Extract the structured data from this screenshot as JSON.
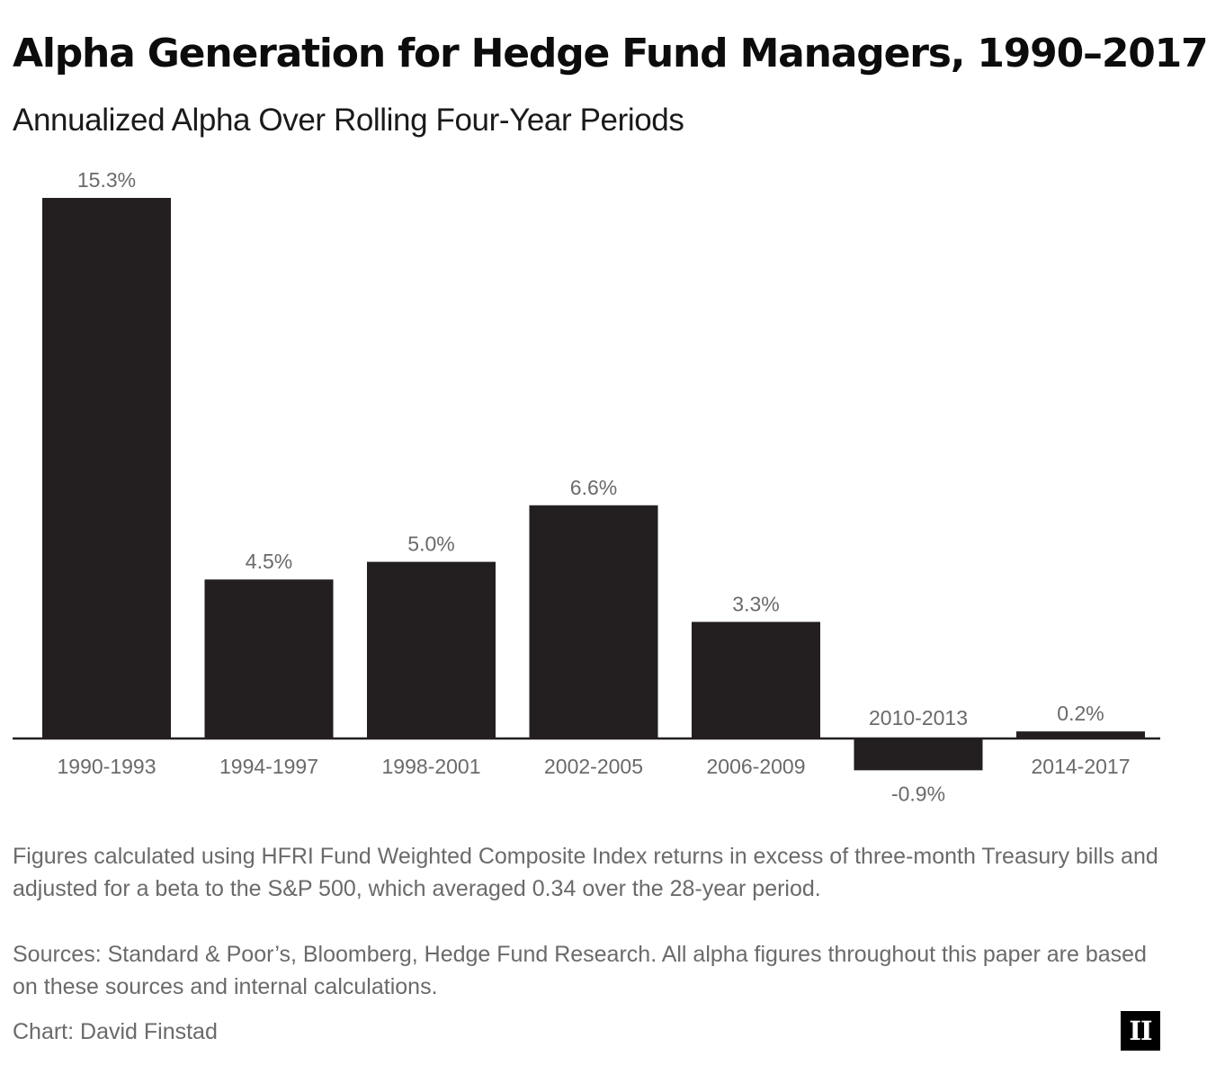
{
  "title": "Alpha Generation for Hedge Fund Managers, 1990–2017",
  "subtitle": "Annualized Alpha Over Rolling Four-Year Periods",
  "chart_data": {
    "type": "bar",
    "categories": [
      "1990-1993",
      "1994-1997",
      "1998-2001",
      "2002-2005",
      "2006-2009",
      "2010-2013",
      "2014-2017"
    ],
    "values": [
      15.3,
      4.5,
      5.0,
      6.6,
      3.3,
      -0.9,
      0.2
    ],
    "value_labels": [
      "15.3%",
      "4.5%",
      "5.0%",
      "6.6%",
      "3.3%",
      "-0.9%",
      "0.2%"
    ],
    "ylim": [
      -1.5,
      16
    ],
    "grid": false,
    "colors": {
      "bar": "#231f20",
      "axis": "#231f20",
      "label": "#6a6a6a"
    }
  },
  "notes": {
    "method": "Figures calculated using HFRI Fund Weighted Composite Index returns in excess of three-month Treasury bills and adjusted for a beta to the S&P 500, which averaged 0.34 over the 28-year period.",
    "sources": "Sources: Standard & Poor’s, Bloomberg, Hedge Fund Research. All alpha figures throughout this paper are based on these sources and internal calculations."
  },
  "credit": "Chart: David Finstad",
  "logo": {
    "text": "II",
    "icon": "institutional-investor-logo"
  }
}
